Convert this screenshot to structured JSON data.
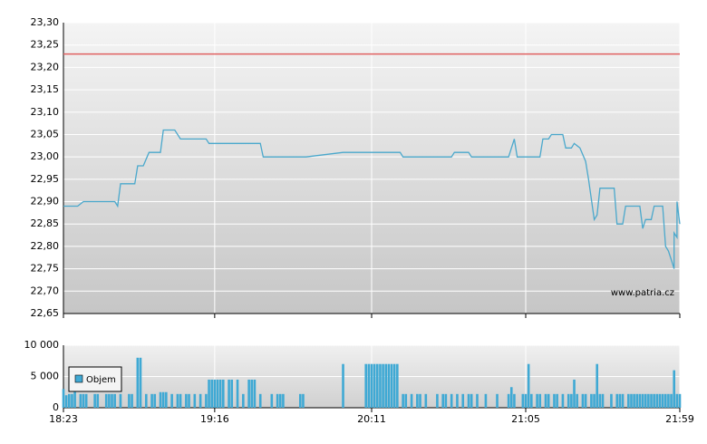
{
  "chart_data": [
    {
      "type": "line",
      "x": [
        "18:23",
        "18:28",
        "18:30",
        "18:41",
        "18:42",
        "18:43",
        "18:48",
        "18:49",
        "18:51",
        "18:53",
        "18:57",
        "18:58",
        "19:02",
        "19:04",
        "19:13",
        "19:14",
        "19:32",
        "19:33",
        "19:48",
        "20:01",
        "20:21",
        "20:22",
        "20:39",
        "20:40",
        "20:45",
        "20:46",
        "20:59",
        "21:01",
        "21:02",
        "21:10",
        "21:11",
        "21:13",
        "21:14",
        "21:18",
        "21:19",
        "21:21",
        "21:22",
        "21:24",
        "21:26",
        "21:27",
        "21:29",
        "21:30",
        "21:31",
        "21:36",
        "21:37",
        "21:39",
        "21:40",
        "21:45",
        "21:46",
        "21:47",
        "21:49",
        "21:50",
        "21:53",
        "21:54",
        "21:55",
        "21:56",
        "21:57",
        "21:57",
        "21:58",
        "21:58",
        "21:59"
      ],
      "series": [
        {
          "color": "#4aa8cc",
          "values": [
            22.89,
            22.89,
            22.9,
            22.9,
            22.89,
            22.94,
            22.94,
            22.98,
            22.98,
            23.01,
            23.01,
            23.06,
            23.06,
            23.04,
            23.04,
            23.03,
            23.03,
            23.0,
            23.0,
            23.01,
            23.01,
            23.0,
            23.0,
            23.01,
            23.01,
            23.0,
            23.0,
            23.04,
            23.0,
            23.0,
            23.04,
            23.04,
            23.05,
            23.05,
            23.02,
            23.02,
            23.03,
            23.02,
            22.99,
            22.95,
            22.86,
            22.87,
            22.93,
            22.93,
            22.85,
            22.85,
            22.89,
            22.89,
            22.84,
            22.86,
            22.86,
            22.89,
            22.89,
            22.8,
            22.79,
            22.77,
            22.75,
            22.83,
            22.82,
            22.9,
            22.85
          ]
        }
      ],
      "reference_line": {
        "value": 23.23,
        "color": "#e06060"
      },
      "xlim": [
        "18:23",
        "21:59"
      ],
      "xticks": [
        "18:23",
        "19:16",
        "20:11",
        "21:05",
        "21:59"
      ],
      "ylim": [
        22.65,
        23.3
      ],
      "yticks": [
        {
          "value": 22.65,
          "label": "22,65"
        },
        {
          "value": 22.7,
          "label": "22,70"
        },
        {
          "value": 22.75,
          "label": "22,75"
        },
        {
          "value": 22.8,
          "label": "22,80"
        },
        {
          "value": 22.85,
          "label": "22,85"
        },
        {
          "value": 22.9,
          "label": "22,90"
        },
        {
          "value": 22.95,
          "label": "22,95"
        },
        {
          "value": 23.0,
          "label": "23,00"
        },
        {
          "value": 23.05,
          "label": "23,05"
        },
        {
          "value": 23.1,
          "label": "23,10"
        },
        {
          "value": 23.15,
          "label": "23,15"
        },
        {
          "value": 23.2,
          "label": "23,20"
        },
        {
          "value": 23.25,
          "label": "23,25"
        },
        {
          "value": 23.3,
          "label": "23,30"
        }
      ],
      "grid": true,
      "annotation": "www.patria.cz"
    },
    {
      "type": "bar",
      "x": [
        "18:23",
        "18:24",
        "18:25",
        "18:26",
        "18:27",
        "18:29",
        "18:30",
        "18:31",
        "18:34",
        "18:35",
        "18:38",
        "18:39",
        "18:40",
        "18:41",
        "18:43",
        "18:46",
        "18:47",
        "18:49",
        "18:50",
        "18:52",
        "18:54",
        "18:55",
        "18:57",
        "18:58",
        "18:59",
        "19:01",
        "19:03",
        "19:04",
        "19:06",
        "19:07",
        "19:09",
        "19:11",
        "19:13",
        "19:14",
        "19:15",
        "19:16",
        "19:17",
        "19:18",
        "19:19",
        "19:21",
        "19:22",
        "19:24",
        "19:26",
        "19:28",
        "19:29",
        "19:30",
        "19:32",
        "19:36",
        "19:38",
        "19:39",
        "19:40",
        "19:46",
        "19:47",
        "20:01",
        "20:09",
        "20:10",
        "20:11",
        "20:12",
        "20:13",
        "20:14",
        "20:15",
        "20:16",
        "20:17",
        "20:18",
        "20:19",
        "20:20",
        "20:22",
        "20:23",
        "20:25",
        "20:27",
        "20:28",
        "20:30",
        "20:34",
        "20:36",
        "20:37",
        "20:39",
        "20:41",
        "20:43",
        "20:45",
        "20:46",
        "20:48",
        "20:51",
        "20:55",
        "20:59",
        "21:00",
        "21:01",
        "21:04",
        "21:05",
        "21:06",
        "21:07",
        "21:09",
        "21:10",
        "21:12",
        "21:13",
        "21:15",
        "21:16",
        "21:18",
        "21:20",
        "21:21",
        "21:22",
        "21:23",
        "21:25",
        "21:26",
        "21:28",
        "21:29",
        "21:30",
        "21:31",
        "21:32",
        "21:35",
        "21:37",
        "21:38",
        "21:39",
        "21:41",
        "21:42",
        "21:43",
        "21:44",
        "21:45",
        "21:46",
        "21:47",
        "21:48",
        "21:49",
        "21:50",
        "21:51",
        "21:52",
        "21:53",
        "21:54",
        "21:55",
        "21:56",
        "21:57",
        "21:58",
        "21:59"
      ],
      "series": [
        {
          "name": "Objem",
          "color": "#3fa9d4",
          "values": [
            3000,
            2000,
            2200,
            2200,
            3000,
            2200,
            2200,
            2200,
            2200,
            2200,
            2200,
            2200,
            2200,
            2200,
            2200,
            2200,
            2200,
            8000,
            8000,
            2200,
            2200,
            2200,
            2500,
            2500,
            2500,
            2200,
            2200,
            2200,
            2200,
            2200,
            2200,
            2200,
            2200,
            4500,
            4500,
            4500,
            4500,
            4500,
            4500,
            4500,
            4500,
            4500,
            2200,
            4500,
            4500,
            4500,
            2200,
            2200,
            2200,
            2200,
            2200,
            2200,
            2200,
            7000,
            7000,
            7000,
            7000,
            7000,
            7000,
            7000,
            7000,
            7000,
            7000,
            7000,
            7000,
            7000,
            2200,
            2200,
            2200,
            2200,
            2200,
            2200,
            2200,
            2200,
            2200,
            2200,
            2200,
            2200,
            2200,
            2200,
            2200,
            2200,
            2200,
            2200,
            3300,
            2200,
            2200,
            2200,
            7000,
            2200,
            2200,
            2200,
            2200,
            2200,
            2200,
            2200,
            2200,
            2200,
            2200,
            4500,
            2200,
            2200,
            2200,
            2200,
            2200,
            7000,
            2200,
            2200,
            2200,
            2200,
            2200,
            2200,
            2200,
            2200,
            2200,
            2200,
            2200,
            2200,
            2200,
            2200,
            2200,
            2200,
            2200,
            2200,
            2200,
            2200,
            2200,
            2200,
            6000,
            2200,
            2200
          ]
        }
      ],
      "xlim": [
        "18:23",
        "21:59"
      ],
      "xticks": [
        "18:23",
        "19:16",
        "20:11",
        "21:05",
        "21:59"
      ],
      "ylim": [
        0,
        10000
      ],
      "yticks": [
        0,
        {
          "value": 5000,
          "label": "5 000"
        },
        {
          "value": 10000,
          "label": "10 000"
        }
      ],
      "grid": true,
      "legend": "upper-left"
    }
  ]
}
